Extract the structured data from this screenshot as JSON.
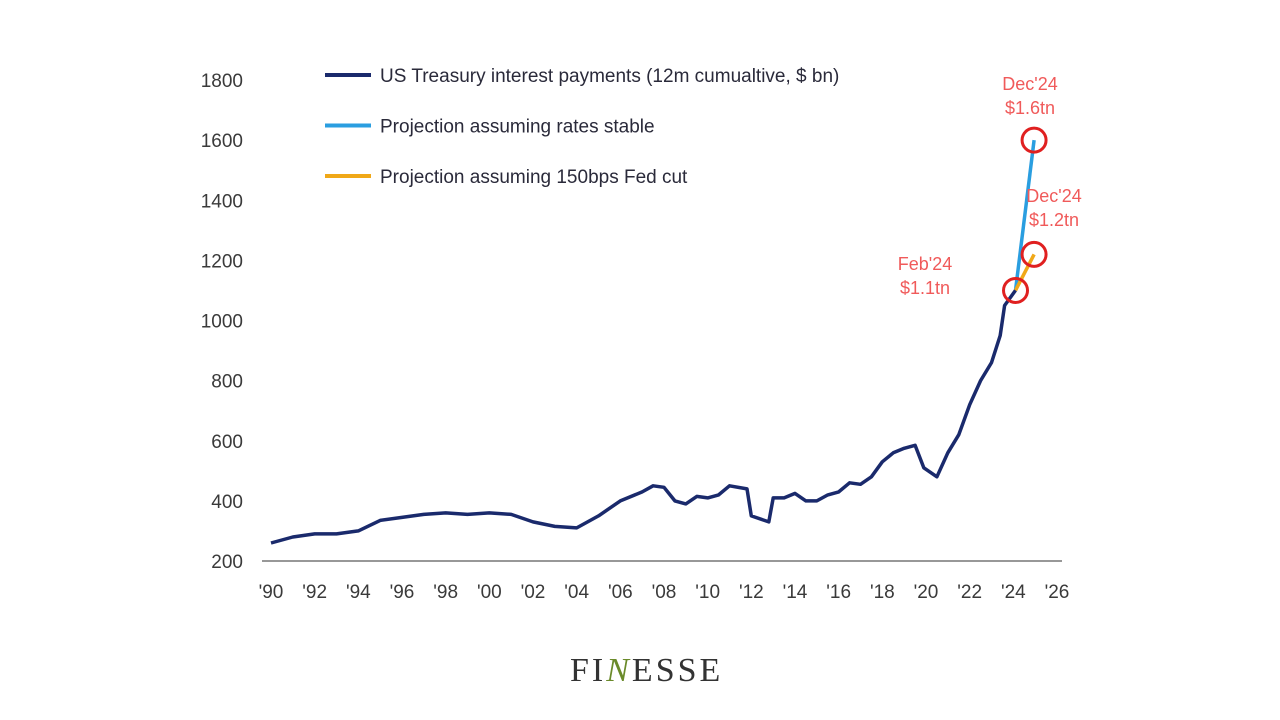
{
  "chart_data": {
    "type": "line",
    "title": "",
    "xlabel": "",
    "ylabel": "",
    "xlim": [
      1990,
      2026
    ],
    "ylim": [
      200,
      1800
    ],
    "grid": false,
    "legend_position": "top-left",
    "x_tick_labels": [
      "'90",
      "'92",
      "'94",
      "'96",
      "'98",
      "'00",
      "'02",
      "'04",
      "'06",
      "'08",
      "'10",
      "'12",
      "'14",
      "'16",
      "'18",
      "'20",
      "'22",
      "'24",
      "'26"
    ],
    "y_tick_labels": [
      "200",
      "400",
      "600",
      "800",
      "1000",
      "1200",
      "1400",
      "1600",
      "1800"
    ],
    "series": [
      {
        "name": "US Treasury interest payments (12m cumualtive, $ bn)",
        "color": "#1a2a6c",
        "x": [
          1990,
          1991,
          1992,
          1993,
          1994,
          1995,
          1996,
          1997,
          1998,
          1999,
          2000,
          2001,
          2002,
          2003,
          2004,
          2005,
          2006,
          2007,
          2007.5,
          2008,
          2008.5,
          2009,
          2009.5,
          2010,
          2010.5,
          2011,
          2011.8,
          2012,
          2012.8,
          2013,
          2013.5,
          2014,
          2014.5,
          2015,
          2015.5,
          2016,
          2016.5,
          2017,
          2017.5,
          2018,
          2018.5,
          2019,
          2019.5,
          2019.9,
          2020.5,
          2021,
          2021.5,
          2022,
          2022.5,
          2023,
          2023.4,
          2023.6,
          2024.1
        ],
        "y": [
          260,
          280,
          290,
          290,
          300,
          335,
          345,
          355,
          360,
          355,
          360,
          355,
          330,
          315,
          310,
          350,
          400,
          430,
          450,
          445,
          400,
          390,
          415,
          410,
          420,
          450,
          440,
          350,
          330,
          410,
          410,
          425,
          400,
          400,
          420,
          430,
          460,
          455,
          480,
          530,
          560,
          575,
          585,
          510,
          480,
          560,
          620,
          720,
          800,
          860,
          950,
          1050,
          1100
        ]
      },
      {
        "name": "Projection assuming rates stable",
        "color": "#2a9ee0",
        "x": [
          2024.1,
          2024.95
        ],
        "y": [
          1100,
          1600
        ]
      },
      {
        "name": "Projection assuming 150bps Fed cut",
        "color": "#f0a818",
        "x": [
          2024.1,
          2024.95
        ],
        "y": [
          1100,
          1220
        ]
      }
    ],
    "annotations": [
      {
        "line1": "Feb'24",
        "line2": "$1.1tn",
        "x": 2024.1,
        "y": 1100
      },
      {
        "line1": "Dec'24",
        "line2": "$1.6tn",
        "x": 2024.95,
        "y": 1600
      },
      {
        "line1": "Dec'24",
        "line2": "$1.2tn",
        "x": 2024.95,
        "y": 1220
      }
    ],
    "annotation_color": "#e02020"
  },
  "logo": {
    "text": "FINESSE",
    "pre": "FI",
    "mid": "N",
    "post": "ESSE"
  }
}
